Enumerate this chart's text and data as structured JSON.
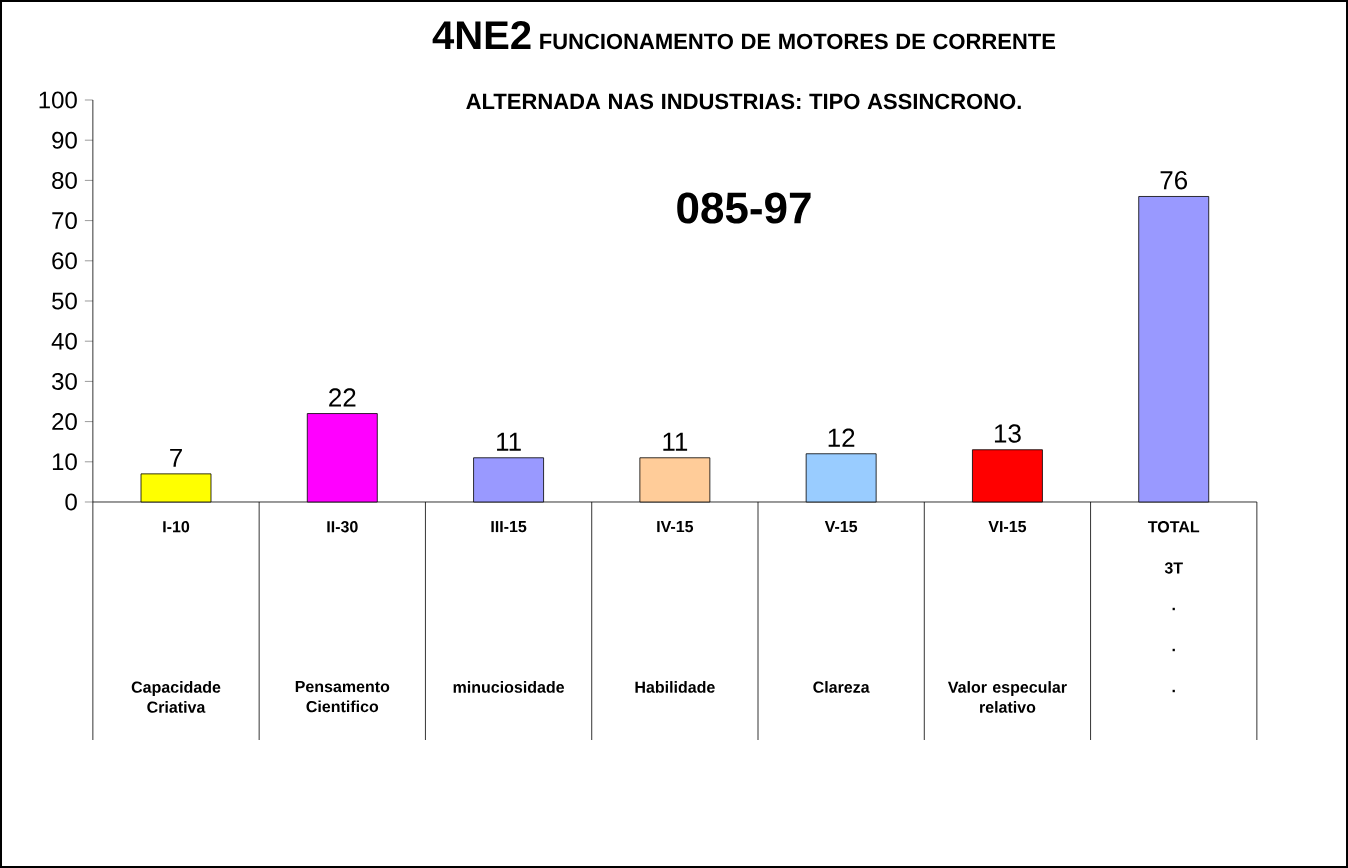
{
  "chart_data": {
    "type": "bar",
    "title": "4NE2",
    "subtitle": "FUNCIONAMENTO DE MOTORES DE CORRENTE ALTERNADA NAS INDUSTRIAS: TIPO ASSINCRONO.",
    "categories": [
      "I-10",
      "II-30",
      "III-15",
      "IV-15",
      "V-15",
      "VI-15",
      "TOTAL"
    ],
    "values": [
      7,
      22,
      11,
      11,
      12,
      13,
      76
    ],
    "colors": [
      "#ffff00",
      "#ff00ff",
      "#9999ff",
      "#ffcc99",
      "#99ccff",
      "#ff0000",
      "#9999ff"
    ],
    "ylim": [
      0,
      100
    ],
    "yticks": [
      0,
      10,
      20,
      30,
      40,
      50,
      60,
      70,
      80,
      90,
      100
    ],
    "data_labels": true,
    "grid": false,
    "annotations": [
      "085-97",
      "3T",
      ".",
      ".",
      ".",
      "Capacidade Criativa",
      "Pensamento Cientifico",
      "minuciosidade",
      "Habilidade",
      "Clareza",
      "Valor especular relativo"
    ]
  }
}
